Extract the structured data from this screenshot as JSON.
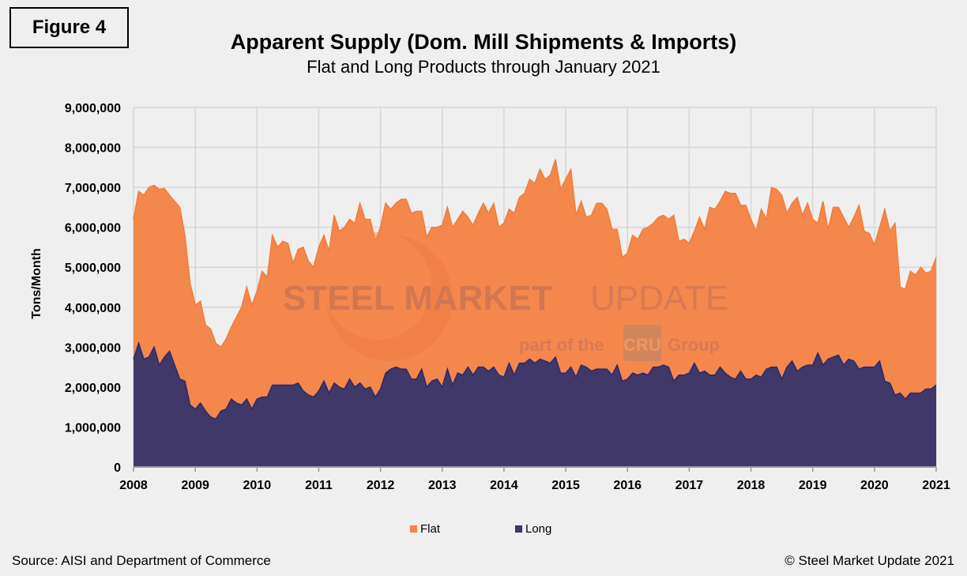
{
  "figure_label": "Figure 4",
  "source": "Source: AISI and Department of Commerce",
  "copyright": "© Steel Market Update 2021",
  "watermark": {
    "line1_bold": "STEEL MARKET",
    "line1_light": "UPDATE",
    "line2a": "part of the",
    "logo": "CRU",
    "line2b": "Group"
  },
  "colors": {
    "flat": "#F4874B",
    "flat_stroke": "#F07D3A",
    "long": "#3F3868",
    "long_stroke": "#2D2A6B",
    "grid": "#D6D6D6",
    "background": "#EFEFEF"
  },
  "chart_data": {
    "type": "area",
    "stacked": true,
    "title": "Apparent Supply (Dom. Mill Shipments & Imports)",
    "subtitle": "Flat and Long Products through January 2021",
    "xlabel": "",
    "ylabel": "Tons/Month",
    "x_range": [
      "2008-01",
      "2021-01"
    ],
    "x_interval": "monthly",
    "x_ticks": [
      "2008",
      "2009",
      "2010",
      "2011",
      "2012",
      "2013",
      "2014",
      "2015",
      "2016",
      "2017",
      "2018",
      "2019",
      "2020",
      "2021"
    ],
    "y_ticks": [
      "0",
      "1,000,000",
      "2,000,000",
      "3,000,000",
      "4,000,000",
      "5,000,000",
      "6,000,000",
      "7,000,000",
      "8,000,000",
      "9,000,000"
    ],
    "ylim": [
      0,
      9000000
    ],
    "grid": true,
    "legend_position": "bottom",
    "series": [
      {
        "name": "Long",
        "values": [
          2700000.0,
          3100000.0,
          2700000.0,
          2750000.0,
          3000000.0,
          2550000.0,
          2750000.0,
          2900000.0,
          2550000.0,
          2200000.0,
          2150000.0,
          1550000.0,
          1450000.0,
          1600000.0,
          1400000.0,
          1250000.0,
          1200000.0,
          1400000.0,
          1450000.0,
          1700000.0,
          1600000.0,
          1550000.0,
          1700000.0,
          1450000.0,
          1700000.0,
          1750000.0,
          1750000.0,
          2050000.0,
          2050000.0,
          2050000.0,
          2050000.0,
          2050000.0,
          2100000.0,
          1900000.0,
          1800000.0,
          1750000.0,
          1900000.0,
          2150000.0,
          1850000.0,
          2100000.0,
          2000000.0,
          1950000.0,
          2200000.0,
          2000000.0,
          2100000.0,
          1950000.0,
          2000000.0,
          1750000.0,
          1950000.0,
          2350000.0,
          2450000.0,
          2500000.0,
          2450000.0,
          2450000.0,
          2200000.0,
          2200000.0,
          2450000.0,
          2000000.0,
          2150000.0,
          2200000.0,
          2000000.0,
          2450000.0,
          2050000.0,
          2350000.0,
          2300000.0,
          2500000.0,
          2300000.0,
          2500000.0,
          2500000.0,
          2400000.0,
          2500000.0,
          2300000.0,
          2250000.0,
          2600000.0,
          2300000.0,
          2600000.0,
          2600000.0,
          2700000.0,
          2600000.0,
          2700000.0,
          2650000.0,
          2600000.0,
          2750000.0,
          2350000.0,
          2350000.0,
          2500000.0,
          2250000.0,
          2550000.0,
          2500000.0,
          2400000.0,
          2450000.0,
          2450000.0,
          2450000.0,
          2300000.0,
          2550000.0,
          2150000.0,
          2200000.0,
          2350000.0,
          2300000.0,
          2350000.0,
          2300000.0,
          2500000.0,
          2500000.0,
          2550000.0,
          2500000.0,
          2150000.0,
          2300000.0,
          2300000.0,
          2350000.0,
          2600000.0,
          2350000.0,
          2400000.0,
          2300000.0,
          2300000.0,
          2500000.0,
          2350000.0,
          2250000.0,
          2200000.0,
          2400000.0,
          2200000.0,
          2200000.0,
          2300000.0,
          2250000.0,
          2450000.0,
          2500000.0,
          2500000.0,
          2200000.0,
          2500000.0,
          2650000.0,
          2400000.0,
          2500000.0,
          2550000.0,
          2550000.0,
          2850000.0,
          2550000.0,
          2700000.0,
          2750000.0,
          2800000.0,
          2550000.0,
          2700000.0,
          2650000.0,
          2450000.0,
          2500000.0,
          2500000.0,
          2500000.0,
          2650000.0,
          2150000.0,
          2100000.0,
          1800000.0,
          1850000.0,
          1700000.0,
          1850000.0,
          1850000.0,
          1850000.0,
          1950000.0,
          1950000.0,
          2050000.0
        ]
      },
      {
        "name": "Flat",
        "values": [
          3500000.0,
          3800000.0,
          4100000.0,
          4250000.0,
          4050000.0,
          4400000.0,
          4220000.0,
          3900000.0,
          4100000.0,
          4300000.0,
          3650000.0,
          3050000.0,
          2600000.0,
          2550000.0,
          2150000.0,
          2200000.0,
          1900000.0,
          1600000.0,
          1750000.0,
          1800000.0,
          2150000.0,
          2450000.0,
          2800000.0,
          2600000.0,
          2700000.0,
          3150000.0,
          3000000.0,
          3750000.0,
          3450000.0,
          3600000.0,
          3550000.0,
          3050000.0,
          3350000.0,
          3600000.0,
          3350000.0,
          3250000.0,
          3600000.0,
          3650000.0,
          3550000.0,
          4200000.0,
          3900000.0,
          4050000.0,
          4000000.0,
          4100000.0,
          4500000.0,
          4250000.0,
          4200000.0,
          3900000.0,
          4050000.0,
          4250000.0,
          4000000.0,
          4100000.0,
          4250000.0,
          4250000.0,
          4150000.0,
          4200000.0,
          3950000.0,
          3750000.0,
          3850000.0,
          3800000.0,
          4050000.0,
          4050000.0,
          3950000.0,
          3850000.0,
          4100000.0,
          3750000.0,
          3750000.0,
          3850000.0,
          4100000.0,
          3950000.0,
          4100000.0,
          3700000.0,
          3850000.0,
          3850000.0,
          4050000.0,
          4150000.0,
          4250000.0,
          4500000.0,
          4500000.0,
          4750000.0,
          4550000.0,
          4700000.0,
          4950000.0,
          4600000.0,
          4850000.0,
          4950000.0,
          4050000.0,
          4100000.0,
          3750000.0,
          3900000.0,
          4150000.0,
          4150000.0,
          4000000.0,
          3650000.0,
          3400000.0,
          3100000.0,
          3150000.0,
          3450000.0,
          3400000.0,
          3600000.0,
          3700000.0,
          3600000.0,
          3750000.0,
          3750000.0,
          3700000.0,
          4150000.0,
          3350000.0,
          3400000.0,
          3250000.0,
          3300000.0,
          3900000.0,
          3550000.0,
          4200000.0,
          4150000.0,
          4150000.0,
          4550000.0,
          4600000.0,
          4650000.0,
          4150000.0,
          4350000.0,
          4000000.0,
          3600000.0,
          4200000.0,
          3750000.0,
          4500000.0,
          4450000.0,
          4600000.0,
          3850000.0,
          3950000.0,
          4350000.0,
          3800000.0,
          4050000.0,
          3650000.0,
          3250000.0,
          4100000.0,
          3250000.0,
          3750000.0,
          3700000.0,
          3700000.0,
          3300000.0,
          3600000.0,
          4100000.0,
          3400000.0,
          3350000.0,
          3050000.0,
          3350000.0,
          4300000.0,
          3800000.0,
          4300000.0,
          2650000.0,
          2750000.0,
          3050000.0,
          2950000.0,
          3150000.0,
          2900000.0,
          2950000.0,
          3200000.0
        ]
      }
    ],
    "legend": [
      "Flat",
      "Long"
    ]
  }
}
